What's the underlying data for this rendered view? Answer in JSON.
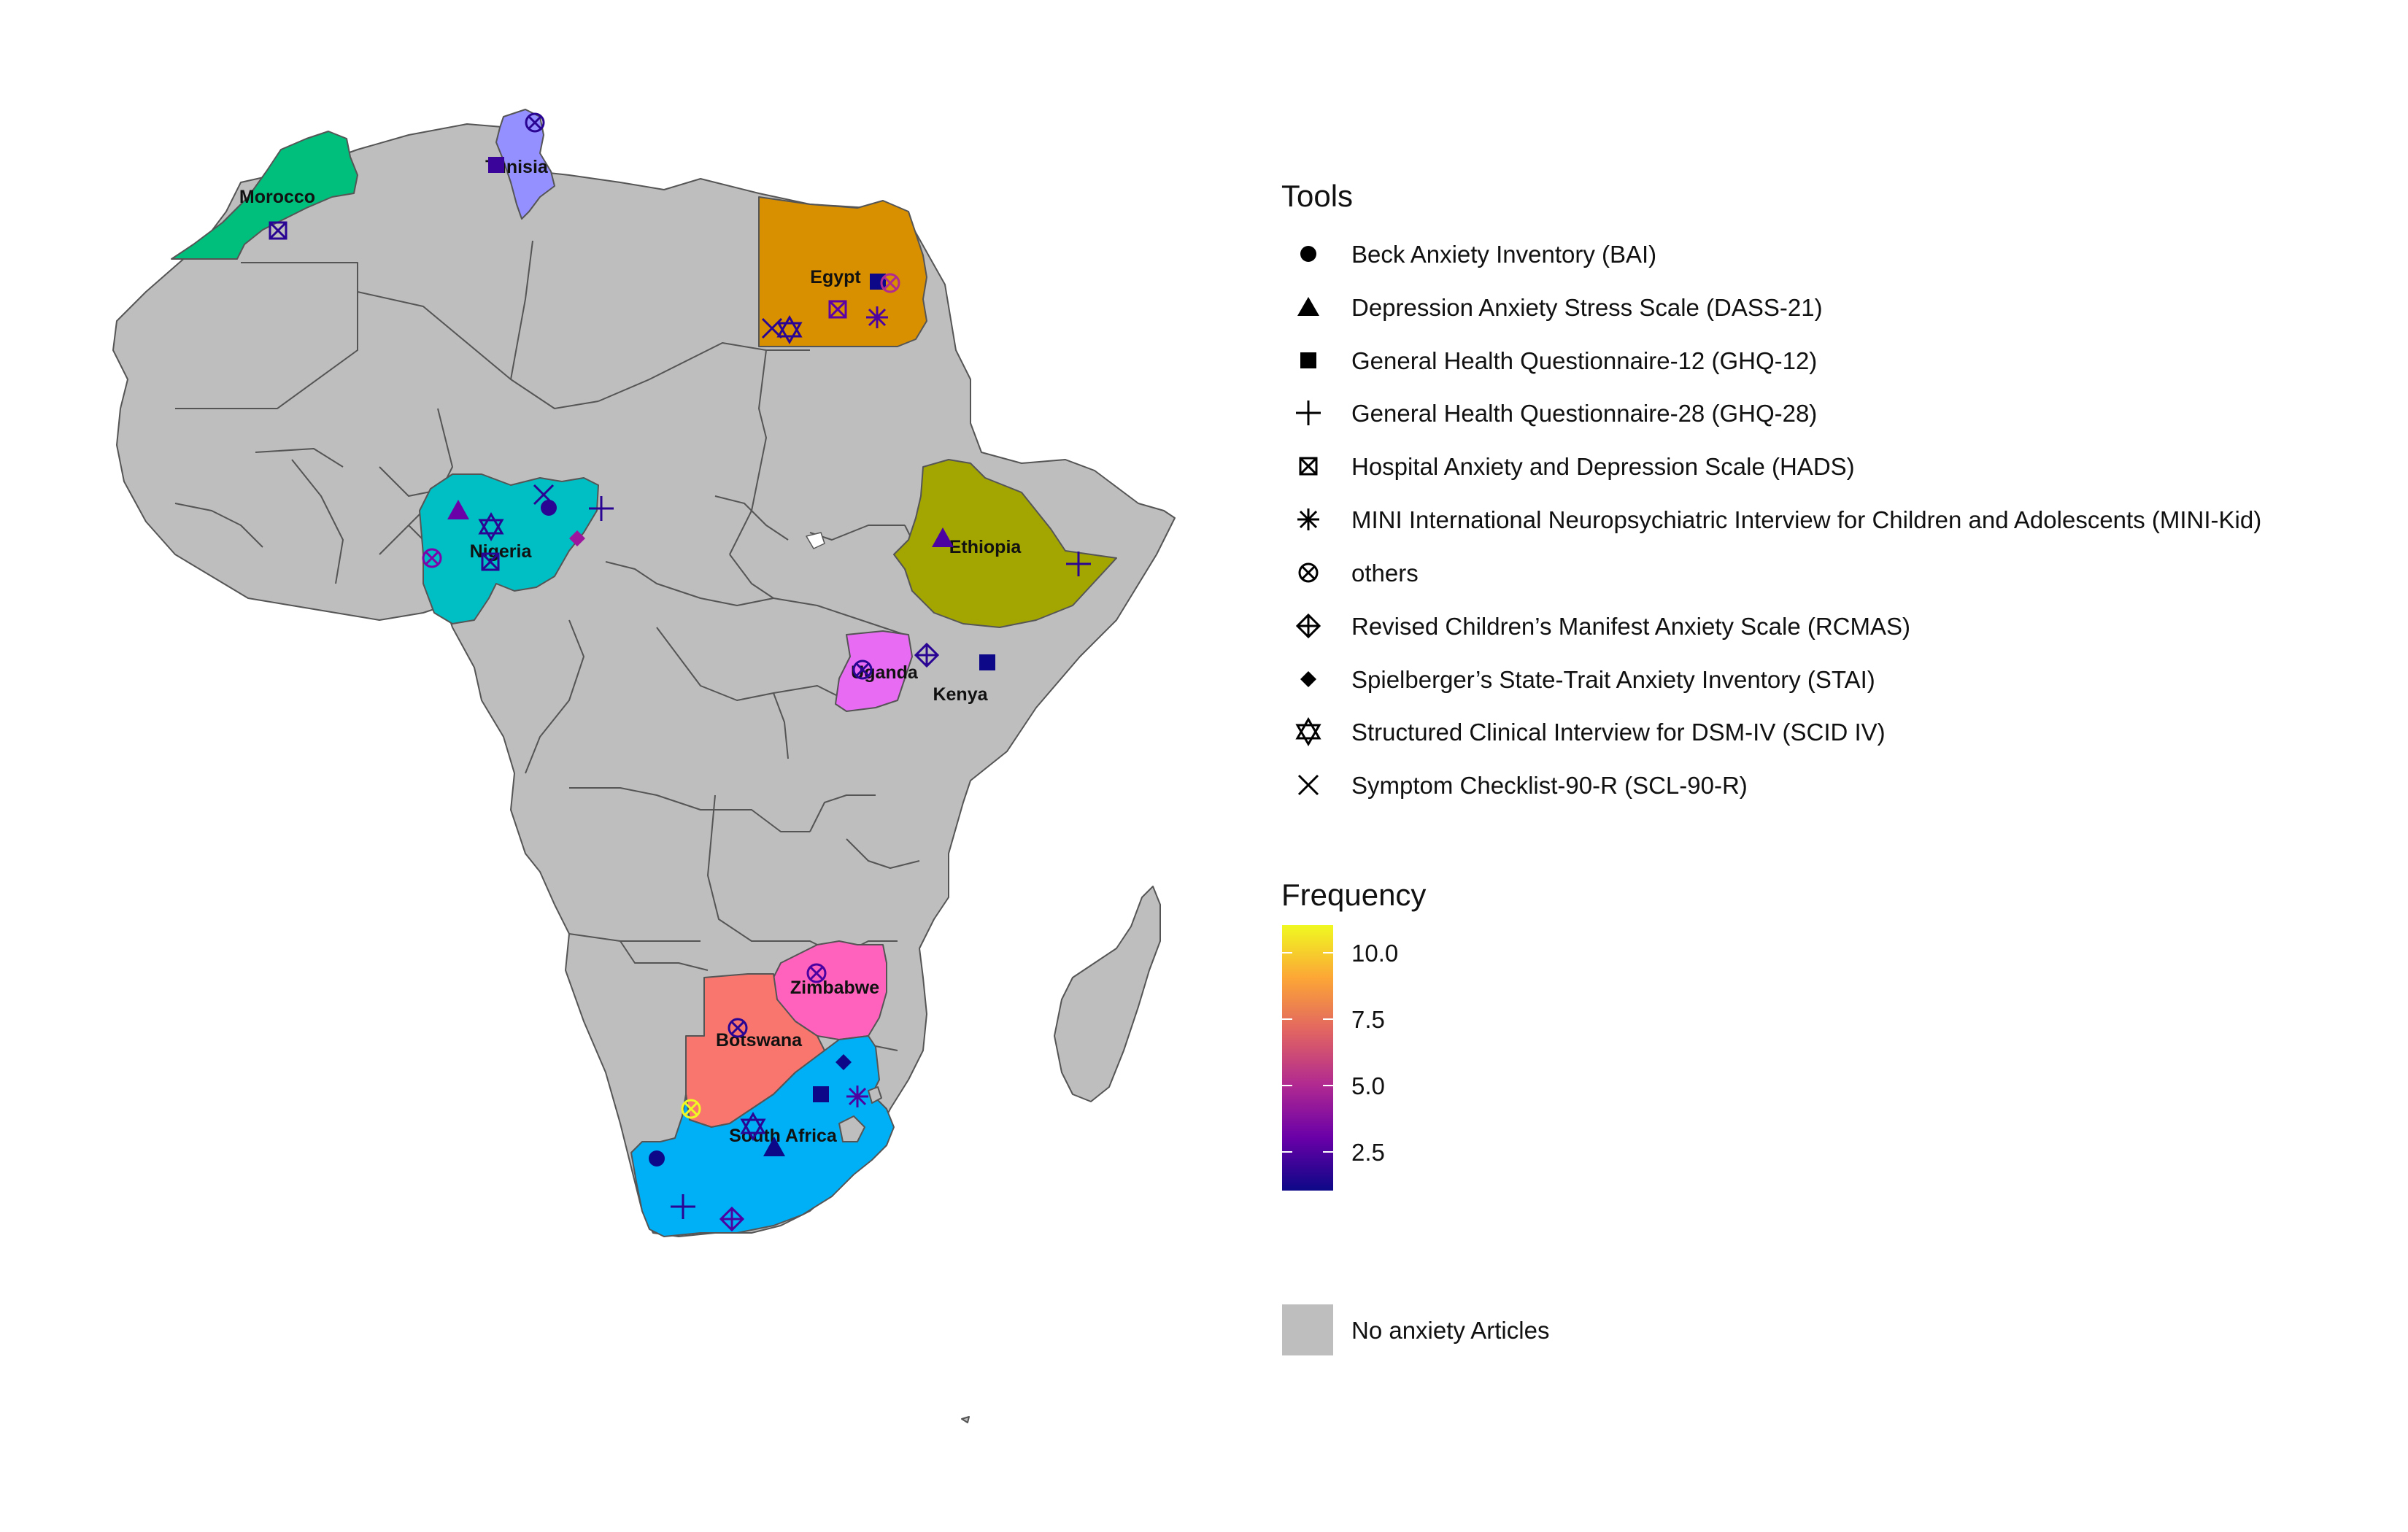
{
  "countries": [
    {
      "id": "morocco",
      "label": "Morocco",
      "color": "#00BF7D"
    },
    {
      "id": "tunisia",
      "label": "Tunisia",
      "color": "#9590FF"
    },
    {
      "id": "egypt",
      "label": "Egypt",
      "color": "#D89000"
    },
    {
      "id": "nigeria",
      "label": "Nigeria",
      "color": "#00BFC4"
    },
    {
      "id": "ethiopia",
      "label": "Ethiopia",
      "color": "#A3A500"
    },
    {
      "id": "uganda",
      "label": "Uganda",
      "color": "#E76BF3"
    },
    {
      "id": "kenya",
      "label": "Kenya",
      "color": "#39B600"
    },
    {
      "id": "zimbabwe",
      "label": "Zimbabwe",
      "color": "#FF62BC"
    },
    {
      "id": "botswana",
      "label": "Botswana",
      "color": "#F8766D"
    },
    {
      "id": "south_africa",
      "label": "South Africa",
      "color": "#00B0F6"
    }
  ],
  "legend": {
    "tools_title": "Tools",
    "tools": [
      {
        "label": "Beck Anxiety Inventory (BAI)",
        "icon": "filled-circle"
      },
      {
        "label": "Depression Anxiety Stress Scale (DASS-21)",
        "icon": "filled-triangle"
      },
      {
        "label": "General Health Questionnaire-12 (GHQ-12)",
        "icon": "filled-square"
      },
      {
        "label": "General Health Questionnaire-28 (GHQ-28)",
        "icon": "plus"
      },
      {
        "label": "Hospital Anxiety and Depression Scale (HADS)",
        "icon": "square-cross"
      },
      {
        "label": "MINI International Neuropsychiatric Interview for Children and Adolescents (MINI-Kid)",
        "icon": "asterisk"
      },
      {
        "label": "others",
        "icon": "circle-cross"
      },
      {
        "label": "Revised Children’s Manifest Anxiety Scale (RCMAS)",
        "icon": "diamond-plus"
      },
      {
        "label": "Spielberger’s State-Trait Anxiety Inventory (STAI)",
        "icon": "filled-diamond"
      },
      {
        "label": "Structured Clinical Interview for DSM-IV (SCID IV)",
        "icon": "star-of-david"
      },
      {
        "label": "Symptom Checklist-90-R (SCL-90-R)",
        "icon": "x-cross"
      }
    ],
    "frequency_title": "Frequency",
    "frequency_ticks": [
      "10.0",
      "7.5",
      "5.0",
      "2.5"
    ],
    "frequency_colors": [
      "#0D0887",
      "#6A00A8",
      "#B12A90",
      "#E16462",
      "#FCA636",
      "#F0F921"
    ],
    "no_articles_label": "No anxiety Articles",
    "no_articles_color": "#BEBEBE"
  }
}
